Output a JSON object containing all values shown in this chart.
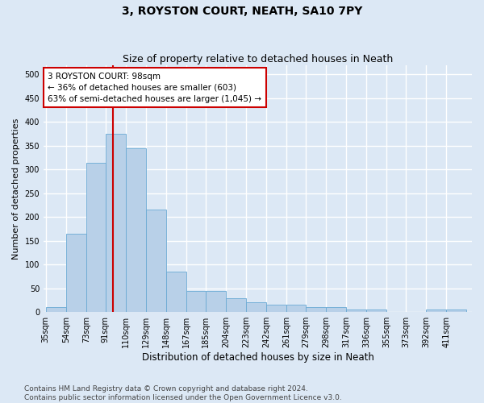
{
  "title": "3, ROYSTON COURT, NEATH, SA10 7PY",
  "subtitle": "Size of property relative to detached houses in Neath",
  "xlabel": "Distribution of detached houses by size in Neath",
  "ylabel": "Number of detached properties",
  "categories": [
    "35sqm",
    "54sqm",
    "73sqm",
    "91sqm",
    "110sqm",
    "129sqm",
    "148sqm",
    "167sqm",
    "185sqm",
    "204sqm",
    "223sqm",
    "242sqm",
    "261sqm",
    "279sqm",
    "298sqm",
    "317sqm",
    "336sqm",
    "355sqm",
    "373sqm",
    "392sqm",
    "411sqm"
  ],
  "values": [
    10,
    165,
    315,
    375,
    345,
    215,
    85,
    45,
    45,
    30,
    20,
    15,
    15,
    10,
    10,
    5,
    5,
    0,
    0,
    5,
    5
  ],
  "bar_color": "#b8d0e8",
  "bar_edge_color": "#6aaad4",
  "vline_color": "#cc0000",
  "annotation_text": "3 ROYSTON COURT: 98sqm\n← 36% of detached houses are smaller (603)\n63% of semi-detached houses are larger (1,045) →",
  "annotation_box_color": "#ffffff",
  "annotation_box_edgecolor": "#cc0000",
  "annotation_fontsize": 7.5,
  "background_color": "#dce8f5",
  "plot_bg_color": "#dce8f5",
  "ylim": [
    0,
    520
  ],
  "yticks": [
    0,
    50,
    100,
    150,
    200,
    250,
    300,
    350,
    400,
    450,
    500
  ],
  "grid_color": "#ffffff",
  "footer_line1": "Contains HM Land Registry data © Crown copyright and database right 2024.",
  "footer_line2": "Contains public sector information licensed under the Open Government Licence v3.0.",
  "footer_fontsize": 6.5,
  "title_fontsize": 10,
  "subtitle_fontsize": 9,
  "xlabel_fontsize": 8.5,
  "ylabel_fontsize": 8,
  "tick_fontsize": 7,
  "bin_edges": [
    35,
    54,
    73,
    91,
    110,
    129,
    148,
    167,
    185,
    204,
    223,
    242,
    261,
    279,
    298,
    317,
    336,
    355,
    373,
    392,
    411,
    430
  ]
}
